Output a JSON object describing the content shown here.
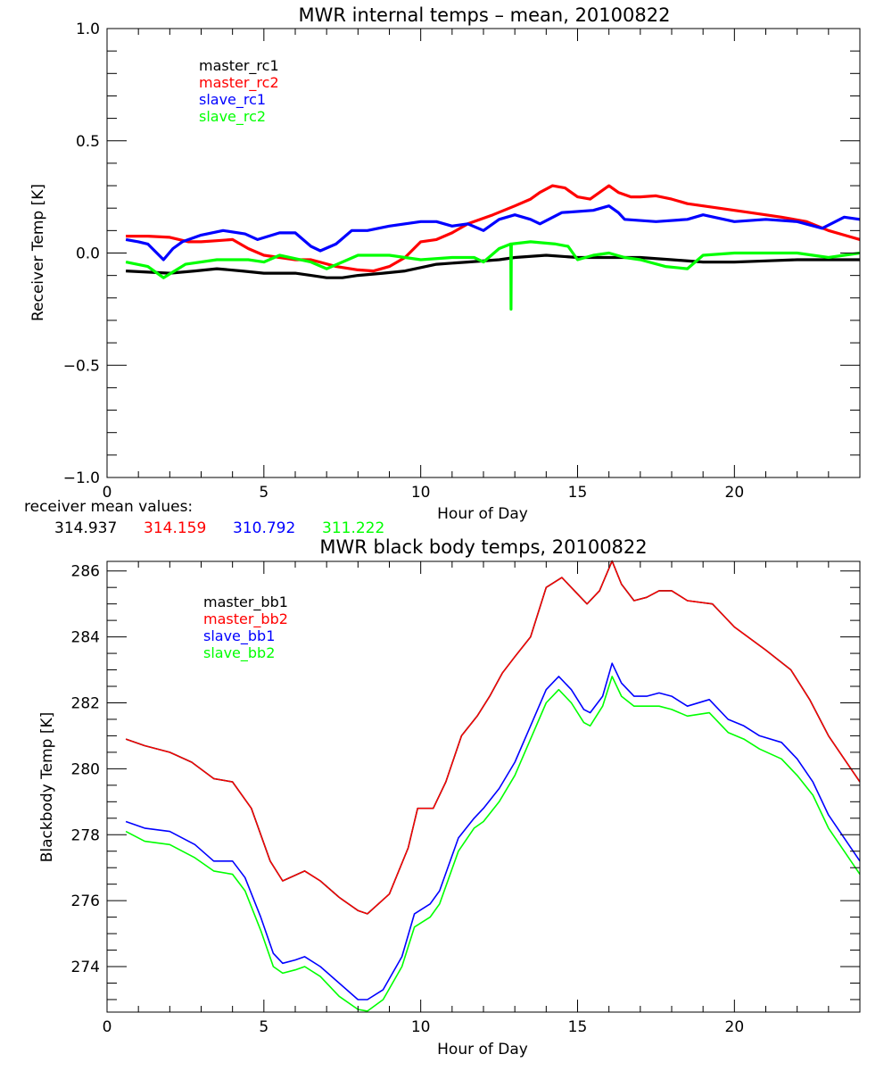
{
  "chart_data": [
    {
      "type": "line",
      "title": "MWR internal temps – mean, 20100822",
      "xlabel": "Hour of Day",
      "ylabel": "Receiver Temp [K]",
      "xlim": [
        0,
        24
      ],
      "ylim": [
        -1.0,
        1.0
      ],
      "xticks": [
        0,
        5,
        10,
        15,
        20
      ],
      "xtick_labels": [
        "0",
        "5",
        "10",
        "15",
        "20"
      ],
      "yticks": [
        -1.0,
        -0.5,
        0.0,
        0.5,
        1.0
      ],
      "ytick_labels": [
        "-1.0",
        "-0.5",
        "0.0",
        "0.5",
        "1.0"
      ],
      "grid": false,
      "legend_position": "top-left",
      "series": [
        {
          "name": "master_rc1",
          "color": "#000000",
          "x": [
            0.6,
            1.3,
            2.0,
            2.8,
            3.5,
            4.3,
            5.0,
            6.0,
            6.5,
            7.0,
            7.5,
            8.0,
            8.8,
            9.5,
            10.5,
            11.5,
            12.5,
            13.0,
            14.0,
            15.0,
            16.0,
            17.0,
            18.0,
            19.0,
            20.0,
            21.0,
            22.0,
            23.0,
            24.0
          ],
          "y": [
            -0.08,
            -0.085,
            -0.09,
            -0.08,
            -0.07,
            -0.08,
            -0.09,
            -0.09,
            -0.1,
            -0.11,
            -0.11,
            -0.1,
            -0.09,
            -0.08,
            -0.05,
            -0.04,
            -0.03,
            -0.02,
            -0.01,
            -0.02,
            -0.02,
            -0.02,
            -0.03,
            -0.04,
            -0.04,
            -0.035,
            -0.03,
            -0.03,
            -0.03
          ]
        },
        {
          "name": "master_rc2",
          "color": "#ff0000",
          "x": [
            0.6,
            1.3,
            2.0,
            2.6,
            3.0,
            3.5,
            4.0,
            4.5,
            5.0,
            5.5,
            6.0,
            6.5,
            7.3,
            8.0,
            8.5,
            9.0,
            9.5,
            10.0,
            10.5,
            11.0,
            11.5,
            12.3,
            13.0,
            13.5,
            13.8,
            14.2,
            14.6,
            15.0,
            15.4,
            16.0,
            16.3,
            16.7,
            17.0,
            17.5,
            18.0,
            18.5,
            19.5,
            20.5,
            21.5,
            22.3,
            23.0,
            23.5,
            24.0
          ],
          "y": [
            0.075,
            0.075,
            0.07,
            0.05,
            0.05,
            0.055,
            0.06,
            0.02,
            -0.01,
            -0.02,
            -0.03,
            -0.03,
            -0.06,
            -0.075,
            -0.08,
            -0.06,
            -0.02,
            0.05,
            0.06,
            0.09,
            0.13,
            0.17,
            0.21,
            0.24,
            0.27,
            0.3,
            0.29,
            0.25,
            0.24,
            0.3,
            0.27,
            0.25,
            0.25,
            0.255,
            0.24,
            0.22,
            0.2,
            0.18,
            0.16,
            0.14,
            0.1,
            0.08,
            0.06
          ]
        },
        {
          "name": "slave_rc1",
          "color": "#0000ff",
          "x": [
            0.6,
            1.0,
            1.3,
            1.8,
            2.1,
            2.4,
            3.0,
            3.7,
            4.4,
            4.8,
            5.5,
            6.0,
            6.5,
            6.8,
            7.3,
            7.8,
            8.3,
            9.0,
            9.5,
            10.0,
            10.5,
            11.0,
            11.5,
            12.0,
            12.5,
            13.0,
            13.5,
            13.8,
            14.5,
            15.5,
            16.0,
            16.3,
            16.5,
            17.5,
            18.5,
            19.0,
            20.0,
            21.0,
            22.0,
            22.8,
            23.5,
            24.0
          ],
          "y": [
            0.06,
            0.05,
            0.04,
            -0.03,
            0.02,
            0.05,
            0.08,
            0.1,
            0.085,
            0.06,
            0.09,
            0.09,
            0.03,
            0.01,
            0.04,
            0.1,
            0.1,
            0.12,
            0.13,
            0.14,
            0.14,
            0.12,
            0.13,
            0.1,
            0.15,
            0.17,
            0.15,
            0.13,
            0.18,
            0.19,
            0.21,
            0.18,
            0.15,
            0.14,
            0.15,
            0.17,
            0.14,
            0.15,
            0.14,
            0.11,
            0.16,
            0.15
          ]
        },
        {
          "name": "slave_rc2",
          "color": "#00ff00",
          "x": [
            0.6,
            1.3,
            1.8,
            2.5,
            3.5,
            4.5,
            5.0,
            5.5,
            6.5,
            7.0,
            7.5,
            8.0,
            9.0,
            10.0,
            11.0,
            11.7,
            12.0,
            12.5,
            12.87,
            12.88,
            12.89,
            13.5,
            14.3,
            14.7,
            15.0,
            15.5,
            16.0,
            16.5,
            17.0,
            17.8,
            18.5,
            19.0,
            20.0,
            22.0,
            23.0,
            24.0
          ],
          "y": [
            -0.04,
            -0.06,
            -0.11,
            -0.05,
            -0.03,
            -0.03,
            -0.04,
            -0.01,
            -0.04,
            -0.07,
            -0.04,
            -0.01,
            -0.01,
            -0.03,
            -0.02,
            -0.02,
            -0.04,
            0.02,
            0.04,
            -0.25,
            0.04,
            0.05,
            0.04,
            0.03,
            -0.03,
            -0.01,
            0.0,
            -0.02,
            -0.03,
            -0.06,
            -0.07,
            -0.01,
            0.0,
            0.0,
            -0.02,
            0.0
          ]
        }
      ]
    },
    {
      "type": "line",
      "title": "MWR black body temps, 20100822",
      "xlabel": "Hour of Day",
      "ylabel": "Blackbody Temp [K]",
      "xlim": [
        0,
        24
      ],
      "ylim": [
        272.62,
        286.29
      ],
      "xticks": [
        0,
        5,
        10,
        15,
        20
      ],
      "xtick_labels": [
        "0",
        "5",
        "10",
        "15",
        "20"
      ],
      "yticks": [
        274,
        276,
        278,
        280,
        282,
        284,
        286
      ],
      "ytick_labels": [
        "274",
        "276",
        "278",
        "280",
        "282",
        "284",
        "286"
      ],
      "grid": false,
      "legend_position": "top-left",
      "series": [
        {
          "name": "master_bb1",
          "color": "#000000",
          "x": [
            0.6,
            1.2,
            2.0,
            2.7,
            3.4,
            4.0,
            4.6,
            5.2,
            5.6,
            6.3,
            6.8,
            7.4,
            8.0,
            8.3,
            9.0,
            9.6,
            9.9,
            10.4,
            10.8,
            11.3,
            11.8,
            12.2,
            12.6,
            13.0,
            13.5,
            14.0,
            14.5,
            15.0,
            15.3,
            15.7,
            16.1,
            16.4,
            16.8,
            17.2,
            17.6,
            18.0,
            18.5,
            19.3,
            20.0,
            21.0,
            21.8,
            22.4,
            23.0,
            23.5,
            24.0
          ],
          "y": [
            280.9,
            280.7,
            280.5,
            280.2,
            279.7,
            279.6,
            278.8,
            277.2,
            276.6,
            276.9,
            276.6,
            276.1,
            275.7,
            275.6,
            276.2,
            277.6,
            278.8,
            278.8,
            279.6,
            281.0,
            281.6,
            282.2,
            282.9,
            283.4,
            284.0,
            285.5,
            285.8,
            285.3,
            285.0,
            285.4,
            286.3,
            285.6,
            285.1,
            285.2,
            285.4,
            285.4,
            285.1,
            285.0,
            284.3,
            283.6,
            283.0,
            282.1,
            281.0,
            280.3,
            279.6
          ]
        },
        {
          "name": "master_bb2",
          "color": "#ff0000",
          "x": [
            0.6,
            1.2,
            2.0,
            2.7,
            3.4,
            4.0,
            4.6,
            5.2,
            5.6,
            6.3,
            6.8,
            7.4,
            8.0,
            8.3,
            9.0,
            9.6,
            9.9,
            10.4,
            10.8,
            11.3,
            11.8,
            12.2,
            12.6,
            13.0,
            13.5,
            14.0,
            14.5,
            15.0,
            15.3,
            15.7,
            16.1,
            16.4,
            16.8,
            17.2,
            17.6,
            18.0,
            18.5,
            19.3,
            20.0,
            21.0,
            21.8,
            22.4,
            23.0,
            23.5,
            24.0
          ],
          "y": [
            280.9,
            280.7,
            280.5,
            280.2,
            279.7,
            279.6,
            278.8,
            277.2,
            276.6,
            276.9,
            276.6,
            276.1,
            275.7,
            275.6,
            276.2,
            277.6,
            278.8,
            278.8,
            279.6,
            281.0,
            281.6,
            282.2,
            282.9,
            283.4,
            284.0,
            285.5,
            285.8,
            285.3,
            285.0,
            285.4,
            286.3,
            285.6,
            285.1,
            285.2,
            285.4,
            285.4,
            285.1,
            285.0,
            284.3,
            283.6,
            283.0,
            282.1,
            281.0,
            280.3,
            279.6
          ]
        },
        {
          "name": "slave_bb1",
          "color": "#0000ff",
          "x": [
            0.6,
            1.2,
            2.0,
            2.8,
            3.4,
            4.0,
            4.4,
            4.9,
            5.3,
            5.6,
            6.0,
            6.3,
            6.8,
            7.4,
            8.0,
            8.3,
            8.8,
            9.4,
            9.8,
            10.3,
            10.6,
            11.2,
            11.7,
            12.0,
            12.5,
            13.0,
            13.5,
            14.0,
            14.4,
            14.8,
            15.2,
            15.4,
            15.8,
            16.1,
            16.4,
            16.8,
            17.2,
            17.6,
            18.0,
            18.5,
            19.2,
            19.8,
            20.3,
            20.8,
            21.5,
            22.0,
            22.5,
            23.0,
            23.5,
            24.0
          ],
          "y": [
            278.4,
            278.2,
            278.1,
            277.7,
            277.2,
            277.2,
            276.7,
            275.5,
            274.4,
            274.1,
            274.2,
            274.3,
            274.0,
            273.5,
            273.0,
            273.0,
            273.3,
            274.3,
            275.6,
            275.9,
            276.3,
            277.9,
            278.5,
            278.8,
            279.4,
            280.2,
            281.3,
            282.4,
            282.8,
            282.4,
            281.8,
            281.7,
            282.2,
            283.2,
            282.6,
            282.2,
            282.2,
            282.3,
            282.2,
            281.9,
            282.1,
            281.5,
            281.3,
            281.0,
            280.8,
            280.3,
            279.6,
            278.6,
            277.9,
            277.2
          ]
        },
        {
          "name": "slave_bb2",
          "color": "#00ff00",
          "x": [
            0.6,
            1.2,
            2.0,
            2.8,
            3.4,
            4.0,
            4.4,
            4.9,
            5.3,
            5.6,
            6.0,
            6.3,
            6.8,
            7.4,
            8.0,
            8.3,
            8.8,
            9.4,
            9.8,
            10.3,
            10.6,
            11.2,
            11.7,
            12.0,
            12.5,
            13.0,
            13.5,
            14.0,
            14.4,
            14.8,
            15.2,
            15.4,
            15.8,
            16.1,
            16.4,
            16.8,
            17.2,
            17.6,
            18.0,
            18.5,
            19.2,
            19.8,
            20.3,
            20.8,
            21.5,
            22.0,
            22.5,
            23.0,
            23.5,
            24.0
          ],
          "y": [
            278.1,
            277.8,
            277.7,
            277.3,
            276.9,
            276.8,
            276.3,
            275.1,
            274.0,
            273.8,
            273.9,
            274.0,
            273.7,
            273.1,
            272.7,
            272.65,
            273.0,
            274.0,
            275.2,
            275.5,
            275.9,
            277.5,
            278.2,
            278.4,
            279.0,
            279.8,
            280.9,
            282.0,
            282.4,
            282.0,
            281.4,
            281.3,
            281.9,
            282.8,
            282.2,
            281.9,
            281.9,
            281.9,
            281.8,
            281.6,
            281.7,
            281.1,
            280.9,
            280.6,
            280.3,
            279.8,
            279.2,
            278.2,
            277.5,
            276.8
          ]
        }
      ]
    }
  ],
  "receiver_mean": {
    "label": "receiver mean values:",
    "values": [
      {
        "text": "314.937",
        "color": "#000000"
      },
      {
        "text": "314.159",
        "color": "#ff0000"
      },
      {
        "text": "310.792",
        "color": "#0000ff"
      },
      {
        "text": "311.222",
        "color": "#00ff00"
      }
    ]
  }
}
